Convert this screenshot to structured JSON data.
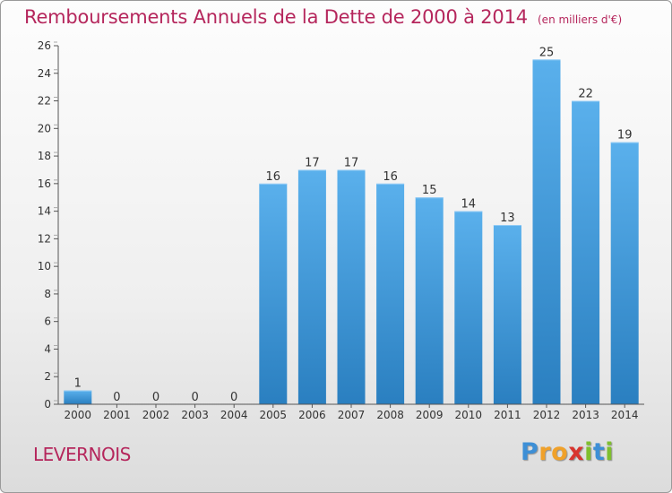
{
  "chart_title": "Remboursements Annuels de la Dette de 2000 à 2014",
  "chart_unit": "(en milliers d'€)",
  "commune": "LEVERNOIS",
  "logo": {
    "letters": [
      "P",
      "r",
      "o",
      "x",
      "i",
      "t",
      "i"
    ],
    "colors": [
      "#3d8fd6",
      "#f0a12a",
      "#f0a12a",
      "#d8342e",
      "#7fbf2e",
      "#3d8fd6",
      "#7fbf2e"
    ]
  },
  "chart_data": {
    "type": "bar",
    "title": "Remboursements Annuels de la Dette de 2000 à 2014",
    "unit": "(en milliers d'€)",
    "xlabel": "",
    "ylabel": "",
    "categories": [
      "2000",
      "2001",
      "2002",
      "2003",
      "2004",
      "2005",
      "2006",
      "2007",
      "2008",
      "2009",
      "2010",
      "2011",
      "2012",
      "2013",
      "2014"
    ],
    "values": [
      1,
      0,
      0,
      0,
      0,
      16,
      17,
      17,
      16,
      15,
      14,
      13,
      25,
      22,
      19
    ],
    "ylim": [
      0,
      26
    ],
    "yticks": [
      0,
      2,
      4,
      6,
      8,
      10,
      12,
      14,
      16,
      18,
      20,
      22,
      24,
      26
    ],
    "grid": false,
    "colors": {
      "bar_top": "#5ab0ec",
      "bar_bottom": "#2a7fc0",
      "label": "#333333"
    }
  }
}
